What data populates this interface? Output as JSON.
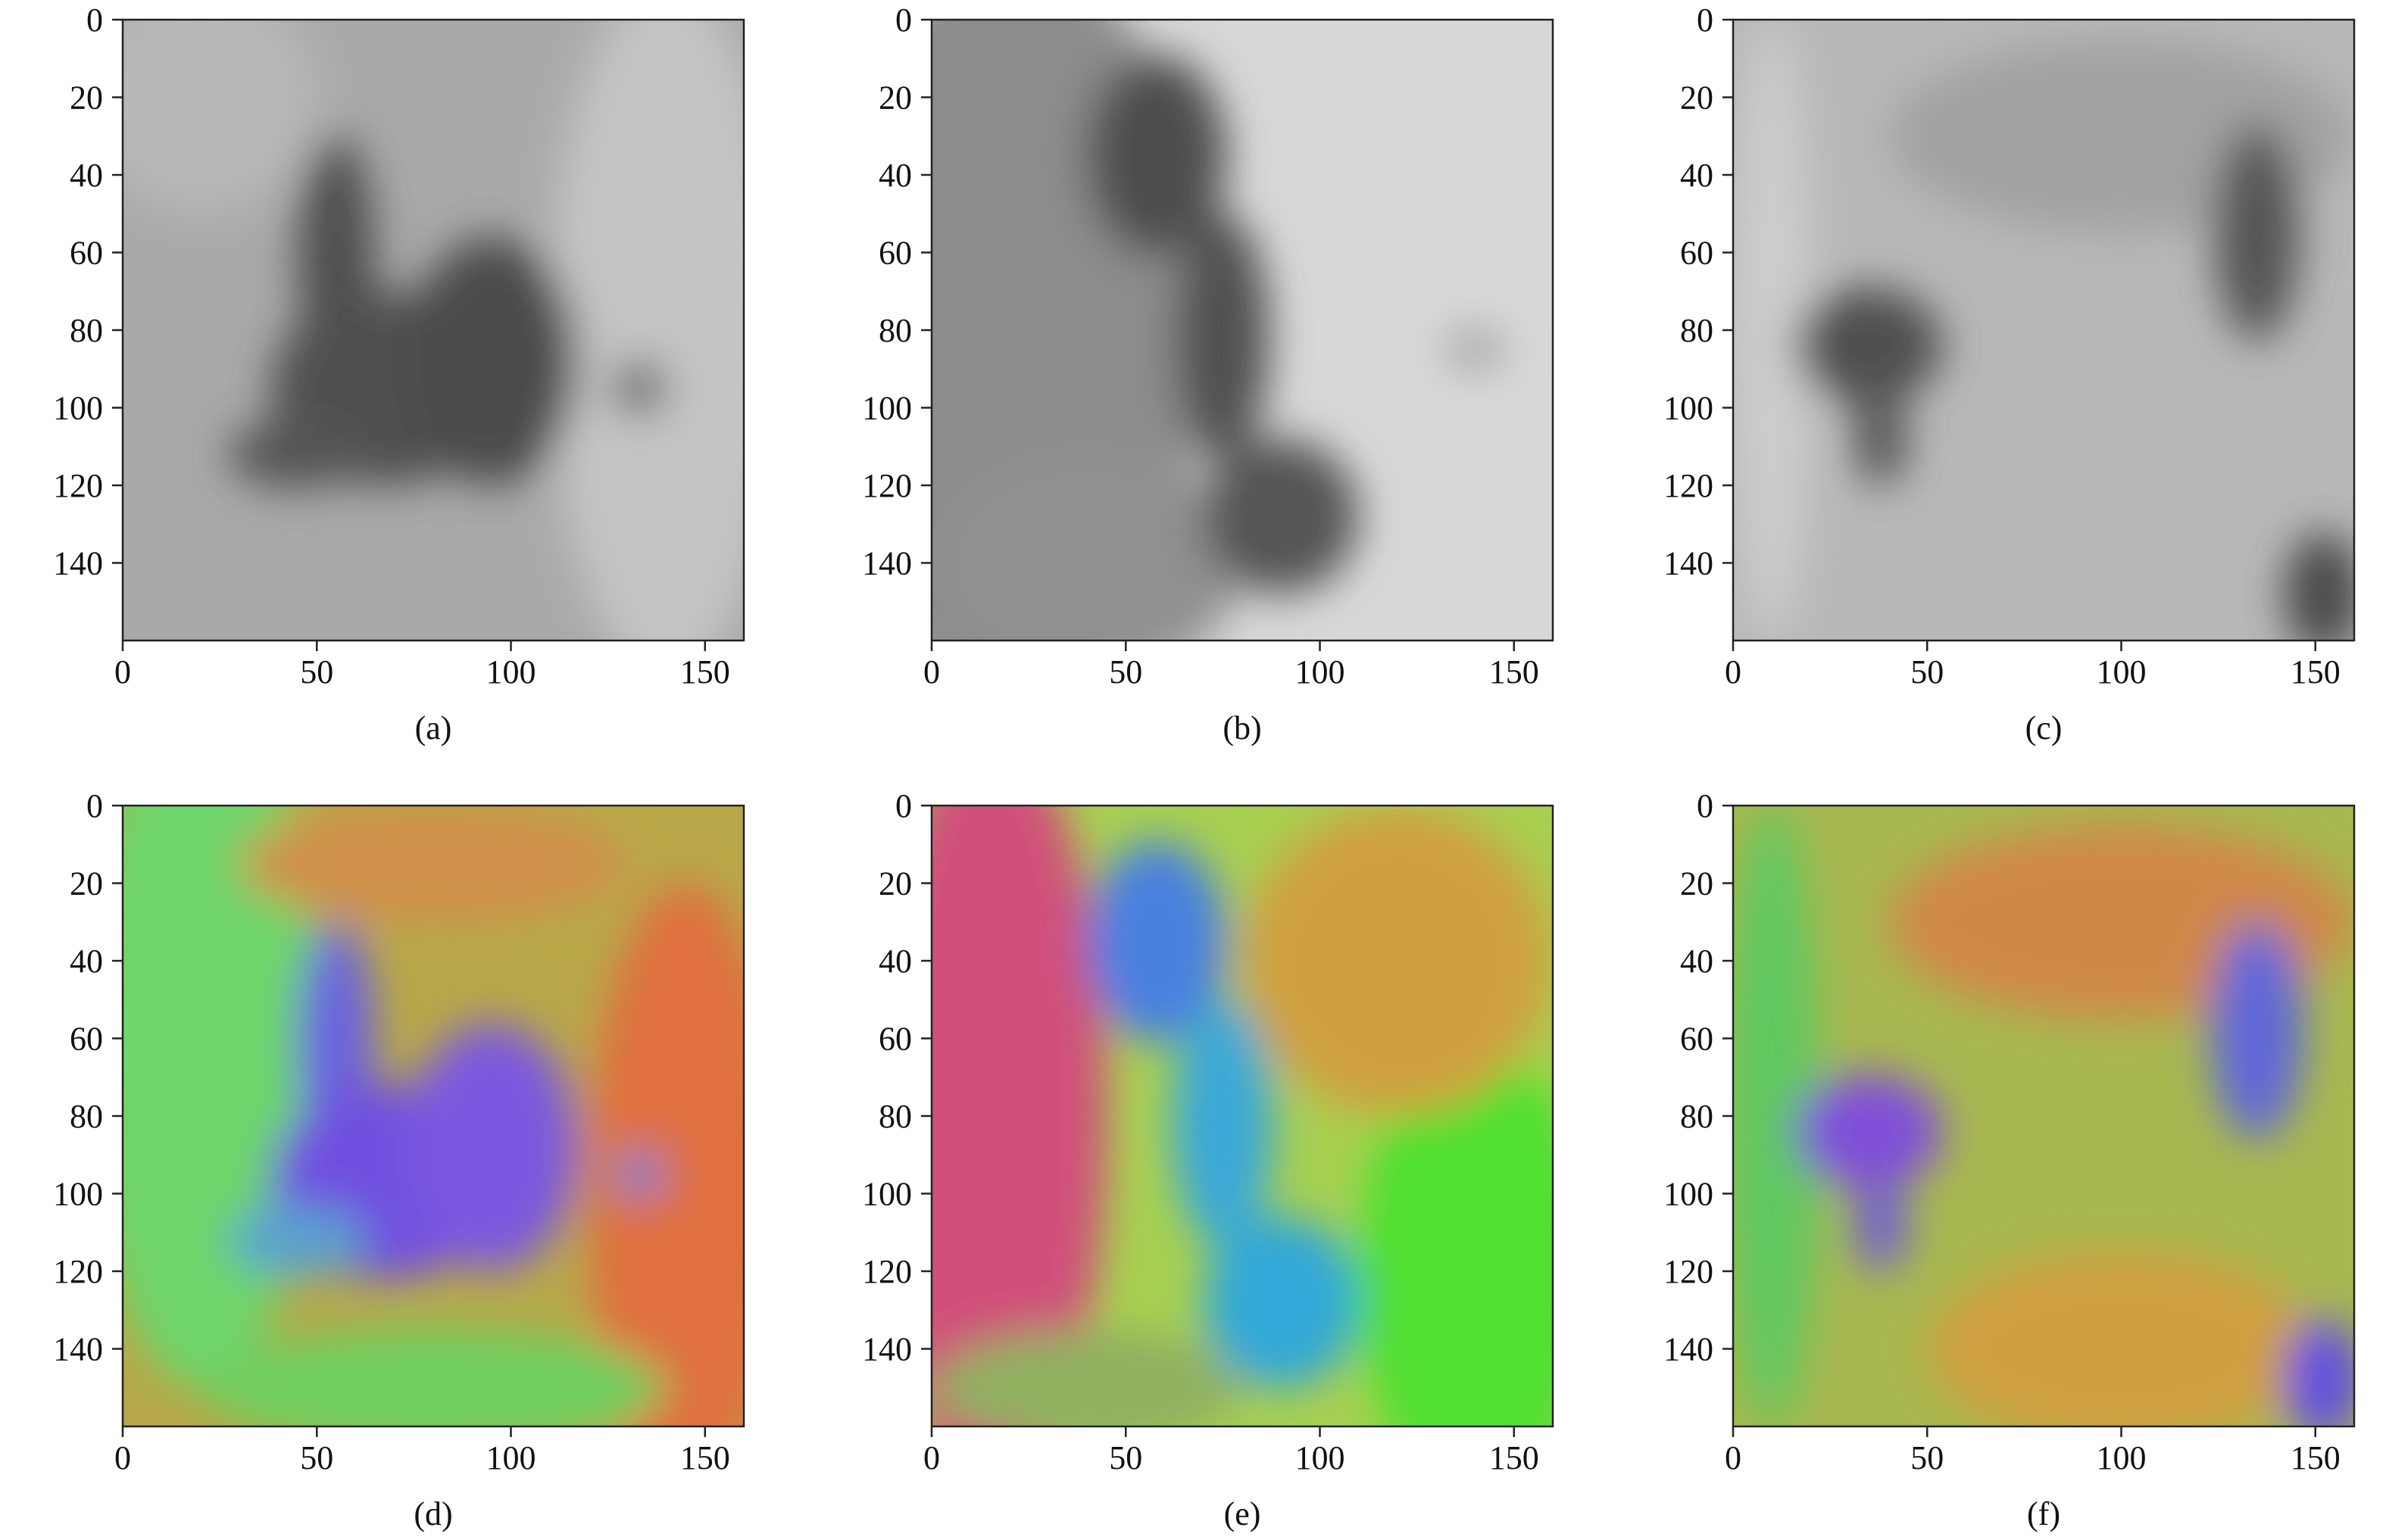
{
  "chart_data": [
    {
      "type": "image",
      "caption": "(a)",
      "colormap": "gray",
      "xlim": [
        0,
        160
      ],
      "ylim": [
        0,
        160
      ],
      "y_inverted": true,
      "xticks": [
        0,
        50,
        100,
        150
      ],
      "yticks": [
        0,
        20,
        40,
        60,
        80,
        100,
        120,
        140
      ]
    },
    {
      "type": "image",
      "caption": "(b)",
      "colormap": "gray",
      "xlim": [
        0,
        160
      ],
      "ylim": [
        0,
        160
      ],
      "y_inverted": true,
      "xticks": [
        0,
        50,
        100,
        150
      ],
      "yticks": [
        0,
        20,
        40,
        60,
        80,
        100,
        120,
        140
      ]
    },
    {
      "type": "image",
      "caption": "(c)",
      "colormap": "gray",
      "xlim": [
        0,
        160
      ],
      "ylim": [
        0,
        160
      ],
      "y_inverted": true,
      "xticks": [
        0,
        50,
        100,
        150
      ],
      "yticks": [
        0,
        20,
        40,
        60,
        80,
        100,
        120,
        140
      ]
    },
    {
      "type": "image",
      "caption": "(d)",
      "colormap": "hsv",
      "xlim": [
        0,
        160
      ],
      "ylim": [
        0,
        160
      ],
      "y_inverted": true,
      "xticks": [
        0,
        50,
        100,
        150
      ],
      "yticks": [
        0,
        20,
        40,
        60,
        80,
        100,
        120,
        140
      ]
    },
    {
      "type": "image",
      "caption": "(e)",
      "colormap": "hsv",
      "xlim": [
        0,
        160
      ],
      "ylim": [
        0,
        160
      ],
      "y_inverted": true,
      "xticks": [
        0,
        50,
        100,
        150
      ],
      "yticks": [
        0,
        20,
        40,
        60,
        80,
        100,
        120,
        140
      ]
    },
    {
      "type": "image",
      "caption": "(f)",
      "colormap": "hsv",
      "xlim": [
        0,
        160
      ],
      "ylim": [
        0,
        160
      ],
      "y_inverted": true,
      "xticks": [
        0,
        50,
        100,
        150
      ],
      "yticks": [
        0,
        20,
        40,
        60,
        80,
        100,
        120,
        140
      ]
    }
  ]
}
